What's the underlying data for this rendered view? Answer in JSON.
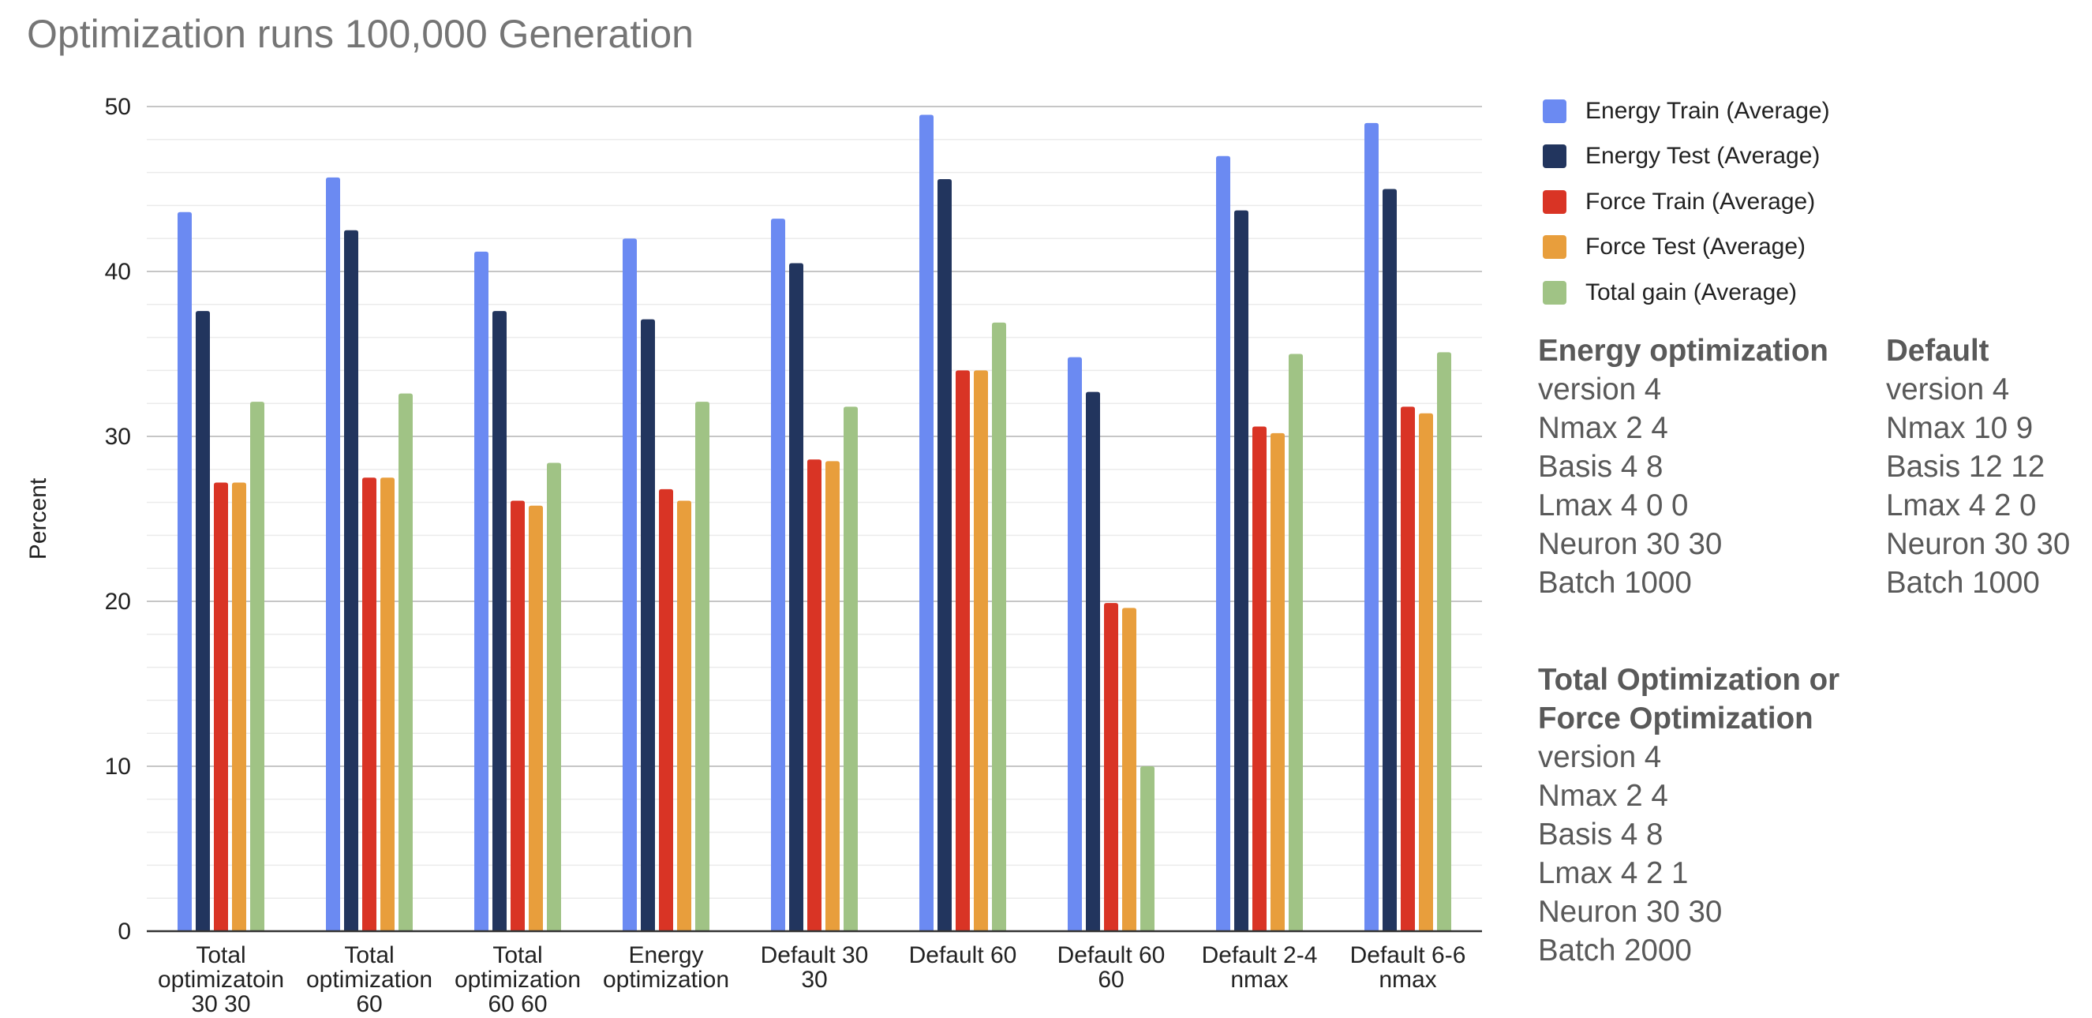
{
  "title": "Optimization runs 100,000 Generation",
  "chart_data": {
    "type": "bar",
    "title": "Optimization runs 100,000 Generation",
    "xlabel": "",
    "ylabel": "Percent",
    "ylim": [
      0,
      50
    ],
    "yticks": [
      0,
      10,
      20,
      30,
      40,
      50
    ],
    "grid": true,
    "legend_position": "right",
    "categories": [
      [
        "Total",
        "optimizatoin",
        "30 30"
      ],
      [
        "Total",
        "optimization",
        "60"
      ],
      [
        "Total",
        "optimization",
        "60 60"
      ],
      [
        "Energy",
        "optimization"
      ],
      [
        "Default 30",
        "30"
      ],
      [
        "Default 60"
      ],
      [
        "Default 60",
        "60"
      ],
      [
        "Default 2-4",
        "nmax"
      ],
      [
        "Default 6-6",
        "nmax"
      ]
    ],
    "series": [
      {
        "name": "Energy Train (Average)",
        "color": "#6b8af2",
        "values": [
          43.6,
          45.7,
          41.2,
          42.0,
          43.2,
          49.5,
          34.8,
          47.0,
          49.0
        ]
      },
      {
        "name": "Energy Test (Average)",
        "color": "#22355e",
        "values": [
          37.6,
          42.5,
          37.6,
          37.1,
          40.5,
          45.6,
          32.7,
          43.7,
          45.0
        ]
      },
      {
        "name": "Force Train (Average)",
        "color": "#d93425",
        "values": [
          27.2,
          27.5,
          26.1,
          26.8,
          28.6,
          34.0,
          19.9,
          30.6,
          31.8
        ]
      },
      {
        "name": "Force Test (Average)",
        "color": "#e89e3c",
        "values": [
          27.2,
          27.5,
          25.8,
          26.1,
          28.5,
          34.0,
          19.6,
          30.2,
          31.4
        ]
      },
      {
        "name": "Total gain (Average)",
        "color": "#a0c385",
        "values": [
          32.1,
          32.6,
          28.4,
          32.1,
          31.8,
          36.9,
          10.0,
          35.0,
          35.1
        ]
      }
    ]
  },
  "notes": {
    "energy": {
      "heading": "Energy optimization",
      "lines": [
        "version 4",
        "Nmax 2 4",
        "Basis 4 8",
        "Lmax 4 0 0",
        "Neuron 30 30",
        "Batch 1000"
      ]
    },
    "default": {
      "heading": "Default",
      "lines": [
        "version 4",
        "Nmax 10 9",
        "Basis 12 12",
        "Lmax 4 2 0",
        "Neuron 30 30",
        "Batch 1000"
      ]
    },
    "total": {
      "heading_line1": "Total Optimization or",
      "heading_line2": "Force Optimization",
      "lines": [
        "version 4",
        "Nmax 2 4",
        "Basis 4 8",
        "Lmax 4 2 1",
        "Neuron 30 30",
        "Batch 2000"
      ]
    }
  }
}
